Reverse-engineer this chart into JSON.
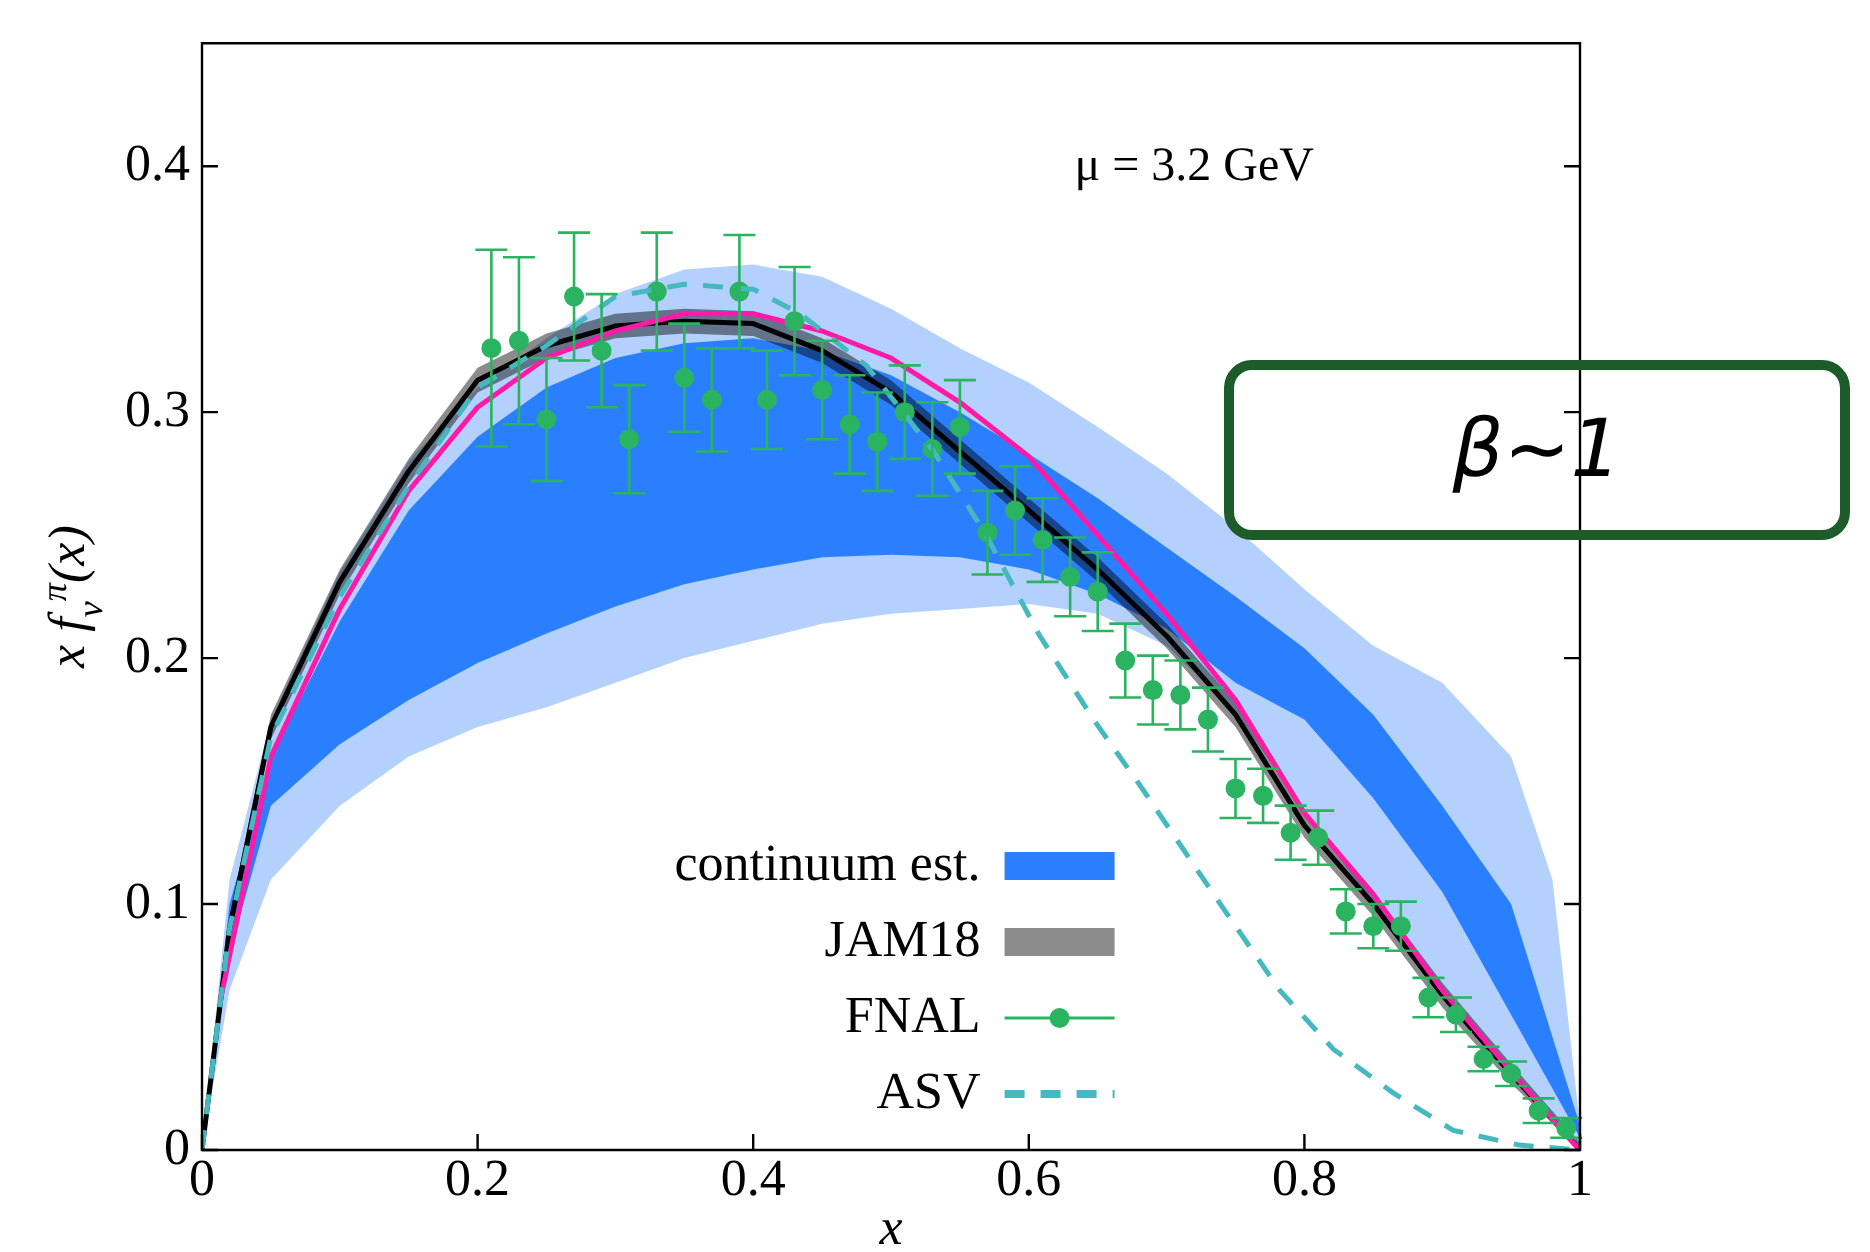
{
  "chart_data": {
    "type": "line",
    "xlabel": "x",
    "ylabel": "x f$_{v}$$^{π}$(x)",
    "xlim": [
      0,
      1
    ],
    "ylim": [
      0,
      0.45
    ],
    "xticks": [
      0,
      0.2,
      0.4,
      0.6,
      0.8,
      1
    ],
    "yticks": [
      0,
      0.1,
      0.2,
      0.3,
      0.4
    ],
    "grid": false,
    "legend": "bottom left",
    "annotations": [
      "μ = 3.2 GeV",
      "β~1"
    ],
    "series": [
      {
        "type": "area",
        "color": "#b3d1fc",
        "x": [
          0,
          0.02,
          0.05,
          0.1,
          0.15,
          0.2,
          0.25,
          0.3,
          0.35,
          0.4,
          0.45,
          0.5,
          0.55,
          0.6,
          0.65,
          0.7,
          0.75,
          0.8,
          0.85,
          0.9,
          0.95,
          0.98,
          1
        ],
        "values": [
          null,
          null,
          null,
          null,
          null,
          null,
          null,
          null,
          null,
          null,
          null,
          null,
          null,
          null,
          null,
          null,
          null,
          null,
          null,
          null,
          null,
          null,
          null
        ],
        "lower": [
          0,
          0.065,
          0.11,
          0.14,
          0.16,
          0.172,
          0.18,
          0.19,
          0.2,
          0.207,
          0.214,
          0.218,
          0.22,
          0.222,
          0.218,
          0.205,
          0.178,
          0.138,
          0.1,
          0.063,
          0.03,
          0.012,
          0
        ],
        "upper": [
          0,
          0.11,
          0.175,
          0.235,
          0.28,
          0.31,
          0.33,
          0.348,
          0.358,
          0.36,
          0.355,
          0.342,
          0.326,
          0.312,
          0.294,
          0.275,
          0.253,
          0.228,
          0.205,
          0.19,
          0.16,
          0.11,
          0.01
        ]
      },
      {
        "type": "area",
        "name": "continuum est.",
        "color": "#2a7fff",
        "x": [
          0,
          0.02,
          0.05,
          0.1,
          0.15,
          0.2,
          0.25,
          0.3,
          0.35,
          0.4,
          0.45,
          0.5,
          0.55,
          0.6,
          0.65,
          0.7,
          0.75,
          0.8,
          0.85,
          0.9,
          0.95,
          1
        ],
        "values": [
          null,
          null,
          null,
          null,
          null,
          null,
          null,
          null,
          null,
          null,
          null,
          null,
          null,
          null,
          null,
          null,
          null,
          null,
          null,
          null,
          null,
          null
        ],
        "lower": [
          0,
          0.08,
          0.14,
          0.165,
          0.183,
          0.198,
          0.21,
          0.221,
          0.23,
          0.236,
          0.241,
          0.242,
          0.241,
          0.236,
          0.226,
          0.212,
          0.19,
          0.175,
          0.143,
          0.105,
          0.055,
          0.005
        ],
        "upper": [
          0,
          0.1,
          0.16,
          0.215,
          0.26,
          0.29,
          0.31,
          0.322,
          0.328,
          0.33,
          0.325,
          0.315,
          0.3,
          0.283,
          0.265,
          0.245,
          0.225,
          0.204,
          0.177,
          0.14,
          0.1,
          0.01
        ]
      },
      {
        "name": "JAM18",
        "color": "#000000",
        "x": [
          0,
          0.02,
          0.05,
          0.1,
          0.15,
          0.2,
          0.25,
          0.3,
          0.35,
          0.4,
          0.45,
          0.5,
          0.55,
          0.6,
          0.65,
          0.7,
          0.75,
          0.8,
          0.85,
          0.9,
          0.95,
          1
        ],
        "values": [
          0,
          0.09,
          0.172,
          0.231,
          0.276,
          0.313,
          0.327,
          0.335,
          0.337,
          0.336,
          0.325,
          0.308,
          0.284,
          0.26,
          0.236,
          0.209,
          0.177,
          0.132,
          0.1,
          0.063,
          0.031,
          0
        ],
        "lower": [
          0,
          0.085,
          0.167,
          0.226,
          0.271,
          0.308,
          0.322,
          0.33,
          0.332,
          0.331,
          0.32,
          0.303,
          0.279,
          0.255,
          0.231,
          0.204,
          0.172,
          0.127,
          0.095,
          0.058,
          0.027,
          0
        ],
        "upper": [
          0,
          0.095,
          0.177,
          0.236,
          0.281,
          0.318,
          0.332,
          0.34,
          0.342,
          0.341,
          0.33,
          0.313,
          0.289,
          0.265,
          0.241,
          0.214,
          0.182,
          0.137,
          0.105,
          0.068,
          0.035,
          0.003
        ]
      },
      {
        "color": "#ff1aa8",
        "x": [
          0.013,
          0.05,
          0.1,
          0.15,
          0.2,
          0.25,
          0.3,
          0.35,
          0.4,
          0.45,
          0.5,
          0.55,
          0.6,
          0.65,
          0.7,
          0.75,
          0.8,
          0.85,
          0.9,
          0.95,
          0.99,
          1
        ],
        "values": [
          0.06,
          0.16,
          0.22,
          0.268,
          0.302,
          0.322,
          0.333,
          0.34,
          0.34,
          0.333,
          0.322,
          0.304,
          0.282,
          0.25,
          0.218,
          0.183,
          0.137,
          0.104,
          0.065,
          0.032,
          0.006,
          0
        ]
      },
      {
        "type": "scatter",
        "name": "FNAL",
        "color": "#2ab360",
        "marker": "circle",
        "x": [
          0.21,
          0.23,
          0.25,
          0.27,
          0.29,
          0.31,
          0.33,
          0.35,
          0.37,
          0.39,
          0.41,
          0.43,
          0.45,
          0.47,
          0.49,
          0.51,
          0.53,
          0.55,
          0.57,
          0.59,
          0.61,
          0.63,
          0.65,
          0.67,
          0.69,
          0.71,
          0.73,
          0.75,
          0.77,
          0.79,
          0.81,
          0.83,
          0.85,
          0.87,
          0.89,
          0.91,
          0.93,
          0.95,
          0.97,
          0.99
        ],
        "values": [
          0.326,
          0.329,
          0.297,
          0.347,
          0.325,
          0.289,
          0.349,
          0.314,
          0.305,
          0.349,
          0.305,
          0.337,
          0.309,
          0.295,
          0.288,
          0.3,
          0.285,
          0.294,
          0.251,
          0.26,
          0.248,
          0.233,
          0.227,
          0.199,
          0.187,
          0.185,
          0.175,
          0.147,
          0.144,
          0.129,
          0.127,
          0.097,
          0.091,
          0.091,
          0.062,
          0.055,
          0.037,
          0.031,
          0.016,
          0.009
        ],
        "errors": [
          0.04,
          0.034,
          0.025,
          0.026,
          0.023,
          0.022,
          0.024,
          0.022,
          0.021,
          0.023,
          0.02,
          0.022,
          0.02,
          0.02,
          0.02,
          0.019,
          0.019,
          0.019,
          0.017,
          0.018,
          0.017,
          0.016,
          0.016,
          0.015,
          0.014,
          0.014,
          0.013,
          0.012,
          0.011,
          0.011,
          0.011,
          0.009,
          0.009,
          0.01,
          0.008,
          0.007,
          0.005,
          0.005,
          0.005,
          0.004
        ]
      },
      {
        "name": "ASV",
        "color": "#45b8c0",
        "line_style": "dashed",
        "x": [
          0,
          0.02,
          0.05,
          0.1,
          0.15,
          0.2,
          0.25,
          0.3,
          0.35,
          0.4,
          0.434,
          0.482,
          0.531,
          0.569,
          0.608,
          0.647,
          0.681,
          0.739,
          0.782,
          0.821,
          0.865,
          0.908,
          0.956,
          1
        ],
        "values": [
          0,
          0.09,
          0.168,
          0.225,
          0.27,
          0.31,
          0.327,
          0.347,
          0.352,
          0.35,
          0.34,
          0.319,
          0.284,
          0.25,
          0.209,
          0.175,
          0.148,
          0.1,
          0.065,
          0.041,
          0.023,
          0.008,
          0.002,
          0
        ]
      }
    ]
  }
}
